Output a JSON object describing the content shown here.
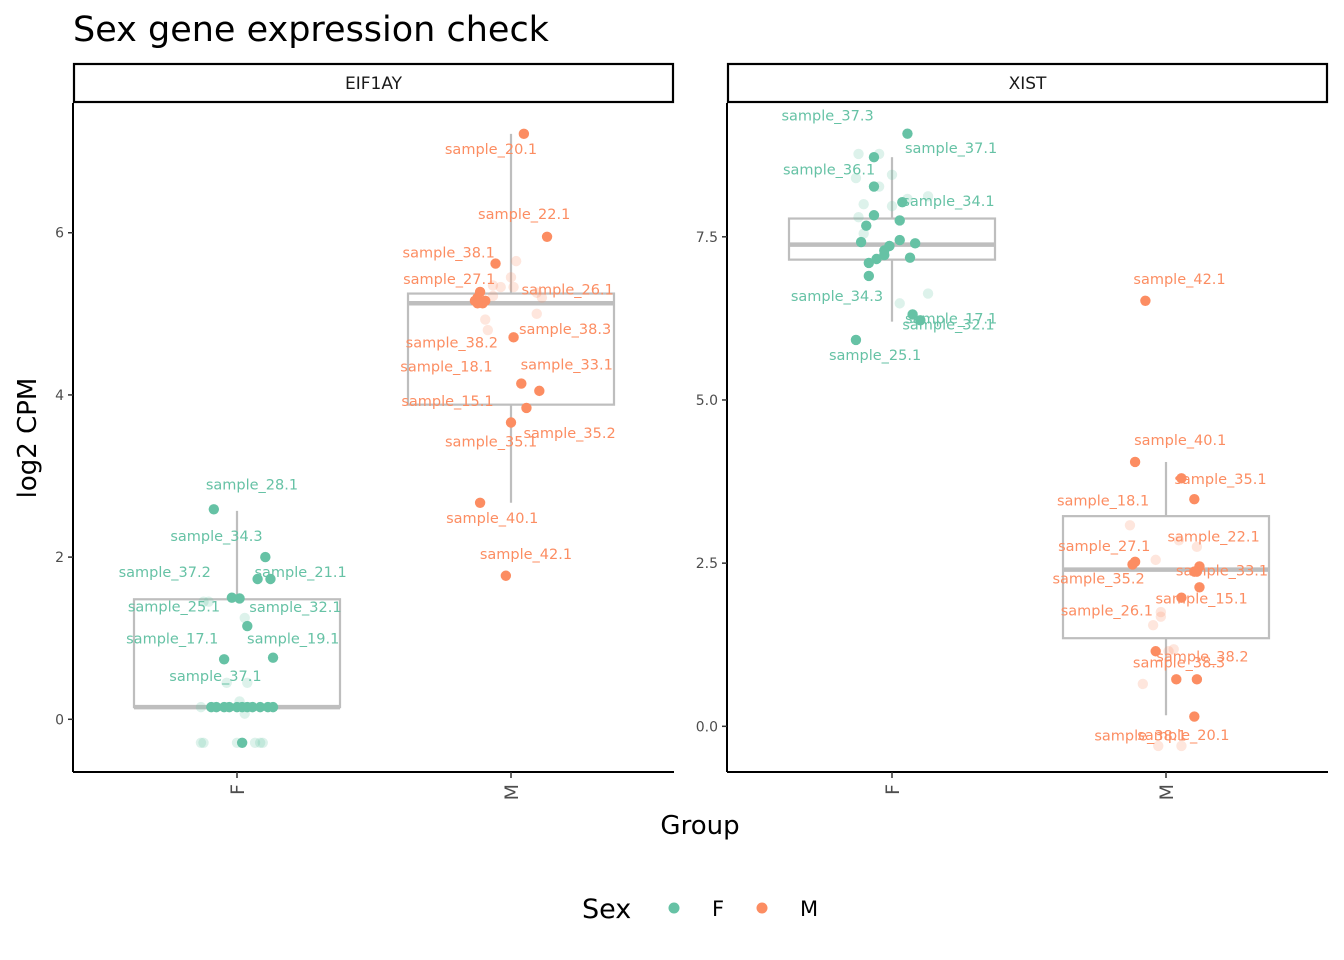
{
  "title": "Sex gene expression check",
  "x_axis_title": "Group",
  "y_axis_title": "log2 CPM",
  "legend": {
    "title": "Sex",
    "items": [
      {
        "label": "F",
        "color": "#66c2a5"
      },
      {
        "label": "M",
        "color": "#fc8d62"
      }
    ]
  },
  "colors": {
    "F": "#66c2a5",
    "M": "#fc8d62",
    "box": "#bebebe"
  },
  "chart_data": [
    {
      "type": "box+scatter",
      "facet": "EIF1AY",
      "categories": [
        "F",
        "M"
      ],
      "ylim": [
        -0.65,
        7.6
      ],
      "y_ticks": [
        0,
        2,
        4,
        6
      ],
      "y_tick_labels": [
        "0",
        "2",
        "4",
        "6"
      ],
      "boxes": [
        {
          "group": "F",
          "q1": 0.15,
          "median": 0.15,
          "q3": 1.48,
          "whisker_low": 0.15,
          "whisker_high": 2.57
        },
        {
          "group": "M",
          "q1": 3.88,
          "median": 5.13,
          "q3": 5.25,
          "whisker_low": 2.67,
          "whisker_high": 7.22
        }
      ],
      "points": [
        {
          "group": "F",
          "label": "sample_28.1",
          "x": -0.09,
          "y": 2.59,
          "faded": false
        },
        {
          "group": "F",
          "label": "sample_34.3",
          "x": 0.11,
          "y": 2.0,
          "faded": false
        },
        {
          "group": "F",
          "label": "sample_37.2",
          "x": 0.08,
          "y": 1.73,
          "faded": false
        },
        {
          "group": "F",
          "label": "sample_21.1",
          "x": 0.13,
          "y": 1.73,
          "faded": false
        },
        {
          "group": "F",
          "label": "sample_25.1",
          "x": -0.02,
          "y": 1.5,
          "faded": false
        },
        {
          "group": "F",
          "label": "",
          "x": 0.01,
          "y": 1.49,
          "faded": false
        },
        {
          "group": "F",
          "label": "sample_32.1",
          "x": 0.04,
          "y": 1.15,
          "faded": false
        },
        {
          "group": "F",
          "label": "sample_17.1",
          "x": -0.05,
          "y": 0.74,
          "faded": false
        },
        {
          "group": "F",
          "label": "sample_19.1",
          "x": 0.14,
          "y": 0.76,
          "faded": false
        },
        {
          "group": "F",
          "label": "sample_37.1",
          "x": 0.04,
          "y": 0.15,
          "faded": false
        },
        {
          "group": "F",
          "label": "",
          "x": -0.1,
          "y": 0.15,
          "faded": false
        },
        {
          "group": "F",
          "label": "",
          "x": -0.08,
          "y": 0.15,
          "faded": false
        },
        {
          "group": "F",
          "label": "",
          "x": -0.05,
          "y": 0.15,
          "faded": false
        },
        {
          "group": "F",
          "label": "",
          "x": -0.03,
          "y": 0.15,
          "faded": false
        },
        {
          "group": "F",
          "label": "",
          "x": 0.0,
          "y": 0.15,
          "faded": false
        },
        {
          "group": "F",
          "label": "",
          "x": 0.02,
          "y": 0.15,
          "faded": false
        },
        {
          "group": "F",
          "label": "",
          "x": 0.06,
          "y": 0.15,
          "faded": false
        },
        {
          "group": "F",
          "label": "",
          "x": 0.09,
          "y": 0.15,
          "faded": false
        },
        {
          "group": "F",
          "label": "",
          "x": 0.12,
          "y": 0.15,
          "faded": false
        },
        {
          "group": "F",
          "label": "",
          "x": 0.14,
          "y": 0.15,
          "faded": false
        },
        {
          "group": "F",
          "label": "",
          "x": 0.02,
          "y": -0.29,
          "faded": false
        },
        {
          "group": "F",
          "label": "",
          "x": -0.14,
          "y": 0.15,
          "faded": true
        },
        {
          "group": "F",
          "label": "",
          "x": -0.11,
          "y": 1.45,
          "faded": true
        },
        {
          "group": "F",
          "label": "",
          "x": -0.13,
          "y": 1.45,
          "faded": true
        },
        {
          "group": "F",
          "label": "",
          "x": 0.03,
          "y": 1.25,
          "faded": true
        },
        {
          "group": "F",
          "label": "",
          "x": -0.04,
          "y": 0.45,
          "faded": true
        },
        {
          "group": "F",
          "label": "",
          "x": 0.04,
          "y": 0.45,
          "faded": true
        },
        {
          "group": "F",
          "label": "",
          "x": 0.01,
          "y": 0.22,
          "faded": true
        },
        {
          "group": "F",
          "label": "",
          "x": 0.03,
          "y": 0.07,
          "faded": true
        },
        {
          "group": "F",
          "label": "",
          "x": -0.14,
          "y": -0.29,
          "faded": true
        },
        {
          "group": "F",
          "label": "",
          "x": -0.13,
          "y": -0.29,
          "faded": true
        },
        {
          "group": "F",
          "label": "",
          "x": 0.0,
          "y": -0.29,
          "faded": true
        },
        {
          "group": "F",
          "label": "",
          "x": 0.07,
          "y": -0.29,
          "faded": true
        },
        {
          "group": "F",
          "label": "",
          "x": 0.09,
          "y": -0.29,
          "faded": true
        },
        {
          "group": "F",
          "label": "",
          "x": 0.1,
          "y": -0.29,
          "faded": true
        },
        {
          "group": "M",
          "label": "sample_20.1",
          "x": 0.05,
          "y": 7.22,
          "faded": false
        },
        {
          "group": "M",
          "label": "sample_22.1",
          "x": 0.14,
          "y": 5.95,
          "faded": false
        },
        {
          "group": "M",
          "label": "sample_38.1",
          "x": -0.06,
          "y": 5.62,
          "faded": false
        },
        {
          "group": "M",
          "label": "sample_27.1",
          "x": -0.12,
          "y": 5.27,
          "faded": false
        },
        {
          "group": "M",
          "label": "sample_26.1",
          "x": -0.13,
          "y": 5.2,
          "faded": false
        },
        {
          "group": "M",
          "label": "sample_38.3",
          "x": -0.14,
          "y": 5.16,
          "faded": false
        },
        {
          "group": "M",
          "label": "sample_38.2",
          "x": -0.11,
          "y": 5.13,
          "faded": false
        },
        {
          "group": "M",
          "label": "",
          "x": -0.1,
          "y": 5.16,
          "faded": false
        },
        {
          "group": "M",
          "label": "",
          "x": -0.13,
          "y": 5.13,
          "faded": false
        },
        {
          "group": "M",
          "label": "sample_33.1",
          "x": 0.01,
          "y": 4.71,
          "faded": false
        },
        {
          "group": "M",
          "label": "sample_18.1",
          "x": 0.04,
          "y": 4.14,
          "faded": false
        },
        {
          "group": "M",
          "label": "sample_15.1",
          "x": 0.11,
          "y": 4.05,
          "faded": false
        },
        {
          "group": "M",
          "label": "sample_35.2",
          "x": 0.06,
          "y": 3.84,
          "faded": false
        },
        {
          "group": "M",
          "label": "sample_35.1",
          "x": 0.0,
          "y": 3.66,
          "faded": false
        },
        {
          "group": "M",
          "label": "sample_40.1",
          "x": -0.12,
          "y": 2.67,
          "faded": false
        },
        {
          "group": "M",
          "label": "sample_42.1",
          "x": -0.02,
          "y": 1.77,
          "faded": false
        },
        {
          "group": "M",
          "label": "",
          "x": 0.02,
          "y": 5.65,
          "faded": true
        },
        {
          "group": "M",
          "label": "",
          "x": 0.0,
          "y": 5.45,
          "faded": true
        },
        {
          "group": "M",
          "label": "",
          "x": -0.07,
          "y": 5.35,
          "faded": true
        },
        {
          "group": "M",
          "label": "",
          "x": -0.04,
          "y": 5.33,
          "faded": true
        },
        {
          "group": "M",
          "label": "",
          "x": 0.01,
          "y": 5.33,
          "faded": true
        },
        {
          "group": "M",
          "label": "",
          "x": -0.07,
          "y": 5.22,
          "faded": true
        },
        {
          "group": "M",
          "label": "",
          "x": 0.1,
          "y": 5.26,
          "faded": true
        },
        {
          "group": "M",
          "label": "",
          "x": 0.12,
          "y": 5.2,
          "faded": true
        },
        {
          "group": "M",
          "label": "",
          "x": 0.1,
          "y": 5.0,
          "faded": true
        },
        {
          "group": "M",
          "label": "",
          "x": -0.1,
          "y": 4.93,
          "faded": true
        },
        {
          "group": "M",
          "label": "",
          "x": -0.09,
          "y": 4.8,
          "faded": true
        }
      ],
      "label_offsets_note": ""
    },
    {
      "type": "box+scatter",
      "facet": "XIST",
      "categories": [
        "F",
        "M"
      ],
      "ylim": [
        -0.7,
        9.55
      ],
      "y_ticks": [
        0,
        2.5,
        5,
        7.5
      ],
      "y_tick_labels": [
        "0.0",
        "2.5",
        "5.0",
        "7.5"
      ],
      "boxes": [
        {
          "group": "F",
          "q1": 7.15,
          "median": 7.38,
          "q3": 7.78,
          "whisker_low": 6.2,
          "whisker_high": 8.72
        },
        {
          "group": "M",
          "q1": 1.35,
          "median": 2.4,
          "q3": 3.22,
          "whisker_low": 0.17,
          "whisker_high": 4.05
        }
      ],
      "points": [
        {
          "group": "F",
          "label": "sample_37.3",
          "x": 0.06,
          "y": 9.08,
          "faded": false
        },
        {
          "group": "F",
          "label": "sample_37.1",
          "x": -0.07,
          "y": 8.72,
          "faded": false
        },
        {
          "group": "F",
          "label": "sample_36.1",
          "x": -0.07,
          "y": 8.27,
          "faded": false
        },
        {
          "group": "F",
          "label": "sample_34.1",
          "x": 0.04,
          "y": 8.03,
          "faded": false
        },
        {
          "group": "F",
          "label": "",
          "x": -0.07,
          "y": 7.83,
          "faded": false
        },
        {
          "group": "F",
          "label": "",
          "x": 0.03,
          "y": 7.75,
          "faded": false
        },
        {
          "group": "F",
          "label": "",
          "x": -0.1,
          "y": 7.67,
          "faded": false
        },
        {
          "group": "F",
          "label": "",
          "x": 0.03,
          "y": 7.45,
          "faded": false
        },
        {
          "group": "F",
          "label": "",
          "x": -0.12,
          "y": 7.42,
          "faded": false
        },
        {
          "group": "F",
          "label": "",
          "x": 0.09,
          "y": 7.4,
          "faded": false
        },
        {
          "group": "F",
          "label": "",
          "x": -0.01,
          "y": 7.36,
          "faded": false
        },
        {
          "group": "F",
          "label": "",
          "x": -0.03,
          "y": 7.29,
          "faded": false
        },
        {
          "group": "F",
          "label": "",
          "x": -0.03,
          "y": 7.22,
          "faded": false
        },
        {
          "group": "F",
          "label": "",
          "x": -0.06,
          "y": 7.16,
          "faded": false
        },
        {
          "group": "F",
          "label": "sample_17.1",
          "x": 0.07,
          "y": 7.18,
          "faded": false
        },
        {
          "group": "F",
          "label": "",
          "x": -0.09,
          "y": 7.1,
          "faded": false
        },
        {
          "group": "F",
          "label": "sample_34.3",
          "x": -0.09,
          "y": 6.9,
          "faded": false
        },
        {
          "group": "F",
          "label": "",
          "x": 0.08,
          "y": 6.31,
          "faded": false
        },
        {
          "group": "F",
          "label": "sample_32.1",
          "x": 0.11,
          "y": 6.22,
          "faded": false
        },
        {
          "group": "F",
          "label": "sample_25.1",
          "x": -0.14,
          "y": 5.92,
          "faded": false
        },
        {
          "group": "F",
          "label": "",
          "x": -0.13,
          "y": 8.77,
          "faded": true
        },
        {
          "group": "F",
          "label": "",
          "x": -0.05,
          "y": 8.77,
          "faded": true
        },
        {
          "group": "F",
          "label": "",
          "x": -0.14,
          "y": 8.4,
          "faded": true
        },
        {
          "group": "F",
          "label": "",
          "x": 0.0,
          "y": 8.45,
          "faded": true
        },
        {
          "group": "F",
          "label": "",
          "x": -0.05,
          "y": 8.27,
          "faded": true
        },
        {
          "group": "F",
          "label": "",
          "x": -0.11,
          "y": 8.0,
          "faded": true
        },
        {
          "group": "F",
          "label": "",
          "x": 0.0,
          "y": 7.97,
          "faded": true
        },
        {
          "group": "F",
          "label": "",
          "x": 0.06,
          "y": 8.08,
          "faded": true
        },
        {
          "group": "F",
          "label": "",
          "x": 0.14,
          "y": 8.12,
          "faded": true
        },
        {
          "group": "F",
          "label": "",
          "x": -0.13,
          "y": 7.8,
          "faded": true
        },
        {
          "group": "F",
          "label": "",
          "x": -0.11,
          "y": 7.55,
          "faded": true
        },
        {
          "group": "F",
          "label": "",
          "x": 0.03,
          "y": 6.48,
          "faded": true
        },
        {
          "group": "F",
          "label": "",
          "x": 0.14,
          "y": 6.63,
          "faded": true
        },
        {
          "group": "M",
          "label": "sample_42.1",
          "x": -0.08,
          "y": 6.52,
          "faded": false
        },
        {
          "group": "M",
          "label": "sample_40.1",
          "x": -0.12,
          "y": 4.05,
          "faded": false
        },
        {
          "group": "M",
          "label": "",
          "x": 0.06,
          "y": 3.8,
          "faded": false
        },
        {
          "group": "M",
          "label": "sample_35.1",
          "x": 0.11,
          "y": 3.48,
          "faded": false
        },
        {
          "group": "M",
          "label": "sample_18.1",
          "x": -0.14,
          "y": 3.08,
          "faded": true
        },
        {
          "group": "M",
          "label": "sample_27.1",
          "x": -0.12,
          "y": 2.52,
          "faded": false
        },
        {
          "group": "M",
          "label": "",
          "x": -0.13,
          "y": 2.48,
          "faded": false
        },
        {
          "group": "M",
          "label": "sample_22.1",
          "x": 0.13,
          "y": 2.45,
          "faded": false
        },
        {
          "group": "M",
          "label": "",
          "x": 0.11,
          "y": 2.37,
          "faded": false
        },
        {
          "group": "M",
          "label": "sample_33.1",
          "x": 0.12,
          "y": 2.37,
          "faded": false
        },
        {
          "group": "M",
          "label": "sample_35.2",
          "x": 0.13,
          "y": 2.13,
          "faded": false
        },
        {
          "group": "M",
          "label": "sample_15.1",
          "x": 0.06,
          "y": 1.97,
          "faded": false
        },
        {
          "group": "M",
          "label": "sample_26.1",
          "x": -0.04,
          "y": 1.15,
          "faded": false
        },
        {
          "group": "M",
          "label": "sample_38.2",
          "x": 0.04,
          "y": 0.72,
          "faded": false
        },
        {
          "group": "M",
          "label": "sample_38.3",
          "x": 0.12,
          "y": 0.72,
          "faded": false
        },
        {
          "group": "M",
          "label": "sample_38.1",
          "x": 0.11,
          "y": 0.15,
          "faded": false
        },
        {
          "group": "M",
          "label": "sample_20.1",
          "x": -0.03,
          "y": -0.3,
          "faded": true
        },
        {
          "group": "M",
          "label": "",
          "x": 0.06,
          "y": -0.3,
          "faded": true
        },
        {
          "group": "M",
          "label": "",
          "x": -0.04,
          "y": 2.55,
          "faded": true
        },
        {
          "group": "M",
          "label": "",
          "x": 0.05,
          "y": 2.85,
          "faded": true
        },
        {
          "group": "M",
          "label": "",
          "x": 0.12,
          "y": 2.75,
          "faded": true
        },
        {
          "group": "M",
          "label": "",
          "x": -0.02,
          "y": 1.75,
          "faded": true
        },
        {
          "group": "M",
          "label": "",
          "x": -0.02,
          "y": 1.68,
          "faded": true
        },
        {
          "group": "M",
          "label": "",
          "x": -0.05,
          "y": 1.55,
          "faded": true
        },
        {
          "group": "M",
          "label": "",
          "x": 0.01,
          "y": 1.15,
          "faded": true
        },
        {
          "group": "M",
          "label": "",
          "x": 0.03,
          "y": 1.18,
          "faded": true
        },
        {
          "group": "M",
          "label": "",
          "x": -0.09,
          "y": 0.65,
          "faded": true
        }
      ]
    }
  ]
}
